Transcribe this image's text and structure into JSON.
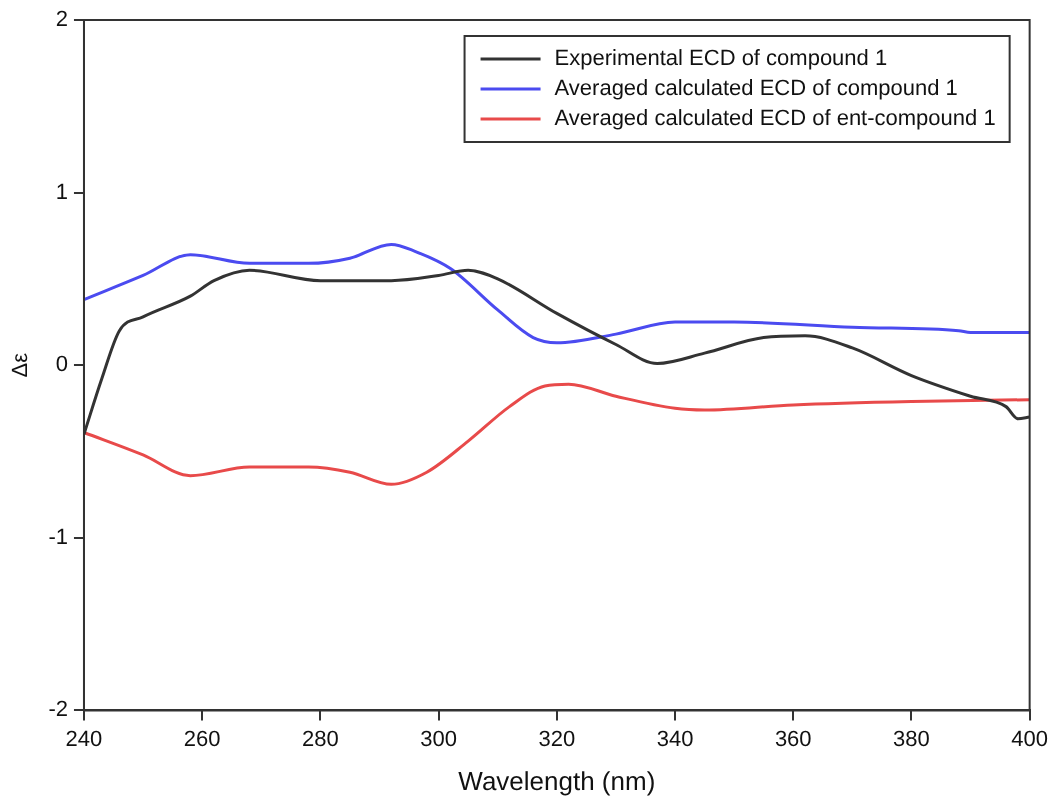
{
  "chart_data": {
    "type": "line",
    "xlabel": "Wavelength (nm)",
    "ylabel": "Δε",
    "xlim": [
      240,
      400
    ],
    "xticks": [
      240,
      260,
      280,
      300,
      320,
      340,
      360,
      380,
      400
    ],
    "ylim": [
      -2,
      2
    ],
    "yticks": [
      -2,
      -1,
      0,
      1,
      2
    ],
    "grid": false,
    "legend": "top right",
    "marker": "none",
    "line_style": "solid",
    "series": [
      {
        "name": "Experimental ECD of compound 1",
        "color": "#333333",
        "x": [
          240,
          243,
          246,
          250,
          258,
          262,
          268,
          280,
          292,
          300,
          305,
          310,
          320,
          330,
          337,
          345,
          355,
          362,
          370,
          380,
          390,
          396,
          398,
          400
        ],
        "values": [
          -0.4,
          -0.08,
          0.2,
          0.28,
          0.4,
          0.49,
          0.55,
          0.49,
          0.49,
          0.52,
          0.55,
          0.5,
          0.3,
          0.12,
          0.01,
          0.07,
          0.16,
          0.17,
          0.1,
          -0.06,
          -0.18,
          -0.24,
          -0.31,
          -0.3
        ]
      },
      {
        "name": "Averaged calculated ECD of compound 1",
        "color": "#4b4bf0",
        "x": [
          240,
          250,
          258,
          268,
          278,
          285,
          292,
          296,
          302,
          310,
          316,
          320,
          330,
          340,
          350,
          370,
          388,
          390,
          400
        ],
        "values": [
          0.38,
          0.52,
          0.64,
          0.59,
          0.59,
          0.62,
          0.7,
          0.66,
          0.56,
          0.32,
          0.16,
          0.13,
          0.18,
          0.25,
          0.25,
          0.22,
          0.2,
          0.19,
          0.19
        ]
      },
      {
        "name": "Averaged calculated ECD of ent-compound 1",
        "color": "#e84a4a",
        "x": [
          240,
          250,
          258,
          268,
          278,
          285,
          292,
          298,
          305,
          312,
          318,
          322,
          330,
          340,
          345,
          360,
          380,
          400
        ],
        "values": [
          -0.39,
          -0.52,
          -0.64,
          -0.59,
          -0.59,
          -0.62,
          -0.69,
          -0.62,
          -0.44,
          -0.24,
          -0.12,
          -0.11,
          -0.18,
          -0.25,
          -0.26,
          -0.23,
          -0.21,
          -0.2
        ]
      }
    ]
  }
}
